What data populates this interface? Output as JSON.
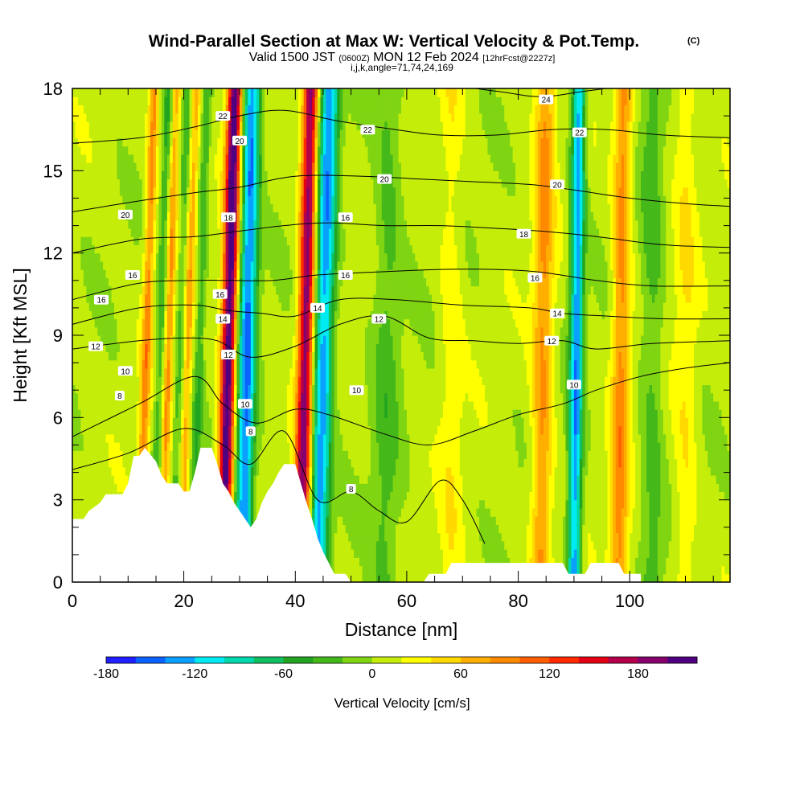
{
  "header": {
    "title": "Wind-Parallel Section at Max W: Vertical Velocity & Pot.Temp.",
    "title_mark": "(C)",
    "subtitle_a": "Valid 1500 JST ",
    "subtitle_b": "(0600Z)",
    "subtitle_c": " MON 12 Feb 2024 ",
    "subtitle_d": "[12hrFcst@2227z]",
    "subtitle2": "i,j,k,angle=71,74,24,169"
  },
  "chart_data": {
    "type": "heatmap",
    "title": "Wind-Parallel Section at Max W: Vertical Velocity & Pot.Temp.",
    "xlabel": "Distance [nm]",
    "ylabel": "Height [Kft MSL]",
    "xlim": [
      0,
      118
    ],
    "ylim": [
      0,
      18
    ],
    "xticks": [
      0,
      20,
      40,
      60,
      80,
      100
    ],
    "yticks": [
      0,
      3,
      6,
      9,
      12,
      15,
      18
    ],
    "colorbar": {
      "label": "Vertical Velocity [cm/s]",
      "min": -180,
      "max": 210,
      "step": 20,
      "tick_values": [
        -180,
        -120,
        -60,
        0,
        60,
        120,
        180
      ],
      "colors": [
        "#1f1fff",
        "#0a62ff",
        "#0aa0ff",
        "#00eaf2",
        "#00d8ad",
        "#10c060",
        "#21a520",
        "#45b81a",
        "#80d512",
        "#c4ee0a",
        "#ffff00",
        "#ffd900",
        "#ffaf00",
        "#ff8a00",
        "#ff5e00",
        "#ff2a00",
        "#e60014",
        "#b4004a",
        "#86006e",
        "#4f0080"
      ]
    },
    "terrain": [
      [
        0,
        2.3
      ],
      [
        2,
        2.3
      ],
      [
        3,
        2.6
      ],
      [
        5,
        2.9
      ],
      [
        6,
        3.2
      ],
      [
        9,
        3.2
      ],
      [
        10,
        3.6
      ],
      [
        11,
        4.6
      ],
      [
        12,
        4.6
      ],
      [
        13,
        4.9
      ],
      [
        15,
        4.4
      ],
      [
        16,
        3.9
      ],
      [
        17,
        3.6
      ],
      [
        19,
        3.6
      ],
      [
        20,
        3.3
      ],
      [
        21,
        3.3
      ],
      [
        22,
        4.0
      ],
      [
        23,
        4.9
      ],
      [
        25,
        4.9
      ],
      [
        26,
        4.3
      ],
      [
        27,
        3.6
      ],
      [
        28,
        3.3
      ],
      [
        29,
        2.9
      ],
      [
        30,
        2.6
      ],
      [
        31,
        2.3
      ],
      [
        32,
        2.0
      ],
      [
        33,
        2.3
      ],
      [
        34,
        2.9
      ],
      [
        35,
        3.3
      ],
      [
        36,
        3.6
      ],
      [
        37,
        4.0
      ],
      [
        38,
        4.3
      ],
      [
        40,
        4.3
      ],
      [
        41,
        3.6
      ],
      [
        42,
        2.9
      ],
      [
        43,
        2.3
      ],
      [
        44,
        1.6
      ],
      [
        45,
        1.1
      ],
      [
        46,
        0.7
      ],
      [
        47,
        0.3
      ],
      [
        49,
        0.3
      ],
      [
        50,
        0.0
      ],
      [
        63,
        0.0
      ],
      [
        64,
        0.3
      ],
      [
        67,
        0.3
      ],
      [
        68,
        0.7
      ],
      [
        88,
        0.7
      ],
      [
        89,
        0.3
      ],
      [
        92,
        0.3
      ],
      [
        93,
        0.7
      ],
      [
        98,
        0.7
      ],
      [
        99,
        0.3
      ],
      [
        102,
        0.3
      ],
      [
        102,
        0.0
      ],
      [
        118,
        0.0
      ]
    ],
    "w_bands": [
      {
        "x": 12.0,
        "slope": 0.15,
        "width": 0.9,
        "amp": 80
      },
      {
        "x": 14.5,
        "slope": 0.15,
        "width": 0.8,
        "amp": -45
      },
      {
        "x": 16.0,
        "slope": 0.15,
        "width": 0.8,
        "amp": 70
      },
      {
        "x": 18.0,
        "slope": 0.15,
        "width": 0.8,
        "amp": -35
      },
      {
        "x": 19.5,
        "slope": 0.15,
        "width": 0.8,
        "amp": 60
      },
      {
        "x": 21.5,
        "slope": 0.15,
        "width": 0.9,
        "amp": -45
      },
      {
        "x": 27.0,
        "slope": 0.12,
        "width": 1.3,
        "amp": 215
      },
      {
        "x": 30.5,
        "slope": 0.1,
        "width": 1.6,
        "amp": -150
      },
      {
        "x": 41.0,
        "slope": 0.1,
        "width": 1.4,
        "amp": 185
      },
      {
        "x": 44.0,
        "slope": 0.12,
        "width": 1.8,
        "amp": -140
      },
      {
        "x": 56.0,
        "slope": 0.05,
        "width": 2.5,
        "amp": -35
      },
      {
        "x": 68.0,
        "slope": 0.0,
        "width": 2.0,
        "amp": 25
      },
      {
        "x": 84.0,
        "slope": 0.05,
        "width": 1.8,
        "amp": 75
      },
      {
        "x": 90.0,
        "slope": 0.05,
        "width": 1.2,
        "amp": -140
      },
      {
        "x": 98.0,
        "slope": 0.05,
        "width": 1.6,
        "amp": 80
      },
      {
        "x": 104.0,
        "slope": 0.0,
        "width": 2.0,
        "amp": -35
      },
      {
        "x": 110.0,
        "slope": 0.0,
        "width": 2.0,
        "amp": 30
      }
    ],
    "theta_contours": [
      {
        "level": 8,
        "points": [
          [
            0,
            4.1
          ],
          [
            10,
            4.7
          ],
          [
            20,
            5.6
          ],
          [
            27,
            5.0
          ],
          [
            32,
            4.3
          ],
          [
            38,
            5.5
          ],
          [
            44,
            3.0
          ],
          [
            50,
            3.3
          ],
          [
            55,
            2.6
          ],
          [
            60,
            2.2
          ],
          [
            66,
            3.7
          ],
          [
            70,
            3.0
          ],
          [
            74,
            1.4
          ]
        ]
      },
      {
        "level": 10,
        "points": [
          [
            0,
            5.3
          ],
          [
            12,
            6.5
          ],
          [
            22,
            7.5
          ],
          [
            27,
            6.5
          ],
          [
            33,
            5.8
          ],
          [
            40,
            6.3
          ],
          [
            46,
            6.1
          ],
          [
            56,
            5.4
          ],
          [
            64,
            5.0
          ],
          [
            72,
            5.5
          ],
          [
            80,
            6.1
          ],
          [
            88,
            6.5
          ],
          [
            94,
            7.0
          ],
          [
            102,
            7.5
          ],
          [
            110,
            7.8
          ],
          [
            118,
            8.0
          ]
        ]
      },
      {
        "level": 12,
        "points": [
          [
            0,
            8.5
          ],
          [
            12,
            8.8
          ],
          [
            20,
            8.9
          ],
          [
            26,
            8.8
          ],
          [
            32,
            8.2
          ],
          [
            40,
            8.6
          ],
          [
            48,
            9.4
          ],
          [
            56,
            9.7
          ],
          [
            64,
            8.9
          ],
          [
            72,
            8.8
          ],
          [
            80,
            8.7
          ],
          [
            88,
            8.8
          ],
          [
            94,
            8.5
          ],
          [
            104,
            8.7
          ],
          [
            118,
            8.8
          ]
        ]
      },
      {
        "level": 14,
        "points": [
          [
            0,
            9.4
          ],
          [
            12,
            10.0
          ],
          [
            22,
            10.1
          ],
          [
            28,
            9.9
          ],
          [
            34,
            9.8
          ],
          [
            40,
            9.7
          ],
          [
            48,
            10.3
          ],
          [
            58,
            10.3
          ],
          [
            70,
            10.1
          ],
          [
            82,
            10.0
          ],
          [
            88,
            9.8
          ],
          [
            96,
            9.7
          ],
          [
            106,
            9.6
          ],
          [
            118,
            9.6
          ]
        ]
      },
      {
        "level": 16,
        "points": [
          [
            0,
            10.3
          ],
          [
            12,
            10.9
          ],
          [
            22,
            11.0
          ],
          [
            28,
            11.0
          ],
          [
            36,
            11.0
          ],
          [
            44,
            11.2
          ],
          [
            54,
            11.3
          ],
          [
            66,
            11.4
          ],
          [
            76,
            11.4
          ],
          [
            84,
            11.3
          ],
          [
            94,
            11.0
          ],
          [
            104,
            10.8
          ],
          [
            118,
            10.8
          ]
        ]
      },
      {
        "level": 18,
        "points": [
          [
            0,
            12.0
          ],
          [
            12,
            12.5
          ],
          [
            22,
            12.6
          ],
          [
            30,
            12.8
          ],
          [
            38,
            13.0
          ],
          [
            46,
            13.1
          ],
          [
            56,
            13.0
          ],
          [
            66,
            13.0
          ],
          [
            76,
            12.9
          ],
          [
            84,
            12.8
          ],
          [
            94,
            12.6
          ],
          [
            106,
            12.3
          ],
          [
            118,
            12.2
          ]
        ]
      },
      {
        "level": 20,
        "points": [
          [
            0,
            13.5
          ],
          [
            12,
            13.9
          ],
          [
            22,
            14.2
          ],
          [
            30,
            14.4
          ],
          [
            40,
            14.8
          ],
          [
            52,
            14.8
          ],
          [
            62,
            14.7
          ],
          [
            72,
            14.6
          ],
          [
            82,
            14.5
          ],
          [
            90,
            14.3
          ],
          [
            100,
            14.0
          ],
          [
            110,
            13.8
          ],
          [
            118,
            13.7
          ]
        ]
      },
      {
        "level": 22,
        "points": [
          [
            0,
            16.0
          ],
          [
            12,
            16.2
          ],
          [
            22,
            16.6
          ],
          [
            30,
            17.0
          ],
          [
            38,
            17.2
          ],
          [
            48,
            16.8
          ],
          [
            58,
            16.5
          ],
          [
            66,
            16.3
          ],
          [
            76,
            16.3
          ],
          [
            86,
            16.5
          ],
          [
            96,
            16.5
          ],
          [
            106,
            16.3
          ],
          [
            118,
            16.2
          ]
        ]
      },
      {
        "level": 24,
        "points": [
          [
            0,
            18.3
          ],
          [
            20,
            18.4
          ],
          [
            40,
            18.5
          ],
          [
            60,
            18.3
          ],
          [
            76,
            17.9
          ],
          [
            84,
            17.7
          ],
          [
            92,
            17.9
          ],
          [
            104,
            18.2
          ],
          [
            118,
            18.3
          ]
        ]
      }
    ],
    "contour_labels": [
      {
        "text": "8",
        "x": 8.5,
        "y": 6.8
      },
      {
        "text": "10",
        "x": 9.5,
        "y": 7.7
      },
      {
        "text": "12",
        "x": 4.2,
        "y": 8.6
      },
      {
        "text": "16",
        "x": 5.2,
        "y": 10.3
      },
      {
        "text": "16",
        "x": 10.8,
        "y": 11.2
      },
      {
        "text": "20",
        "x": 9.5,
        "y": 13.4
      },
      {
        "text": "22",
        "x": 27.0,
        "y": 17.0
      },
      {
        "text": "20",
        "x": 30.0,
        "y": 16.1
      },
      {
        "text": "18",
        "x": 28.0,
        "y": 13.3
      },
      {
        "text": "16",
        "x": 26.5,
        "y": 10.5
      },
      {
        "text": "14",
        "x": 27.0,
        "y": 9.6
      },
      {
        "text": "12",
        "x": 28.0,
        "y": 8.3
      },
      {
        "text": "10",
        "x": 31.0,
        "y": 6.5
      },
      {
        "text": "8",
        "x": 32.0,
        "y": 5.5
      },
      {
        "text": "22",
        "x": 53.0,
        "y": 16.5
      },
      {
        "text": "20",
        "x": 56.0,
        "y": 14.7
      },
      {
        "text": "16",
        "x": 49.0,
        "y": 13.3
      },
      {
        "text": "16",
        "x": 49.0,
        "y": 11.2
      },
      {
        "text": "14",
        "x": 44.0,
        "y": 10.0
      },
      {
        "text": "12",
        "x": 55.0,
        "y": 9.6
      },
      {
        "text": "10",
        "x": 51.0,
        "y": 7.0
      },
      {
        "text": "8",
        "x": 50.0,
        "y": 3.4
      },
      {
        "text": "24",
        "x": 85.0,
        "y": 17.6
      },
      {
        "text": "22",
        "x": 91.0,
        "y": 16.4
      },
      {
        "text": "20",
        "x": 87.0,
        "y": 14.5
      },
      {
        "text": "18",
        "x": 81.0,
        "y": 12.7
      },
      {
        "text": "16",
        "x": 83.0,
        "y": 11.1
      },
      {
        "text": "14",
        "x": 87.0,
        "y": 9.8
      },
      {
        "text": "12",
        "x": 86.0,
        "y": 8.8
      },
      {
        "text": "10",
        "x": 90.0,
        "y": 7.2
      }
    ]
  }
}
